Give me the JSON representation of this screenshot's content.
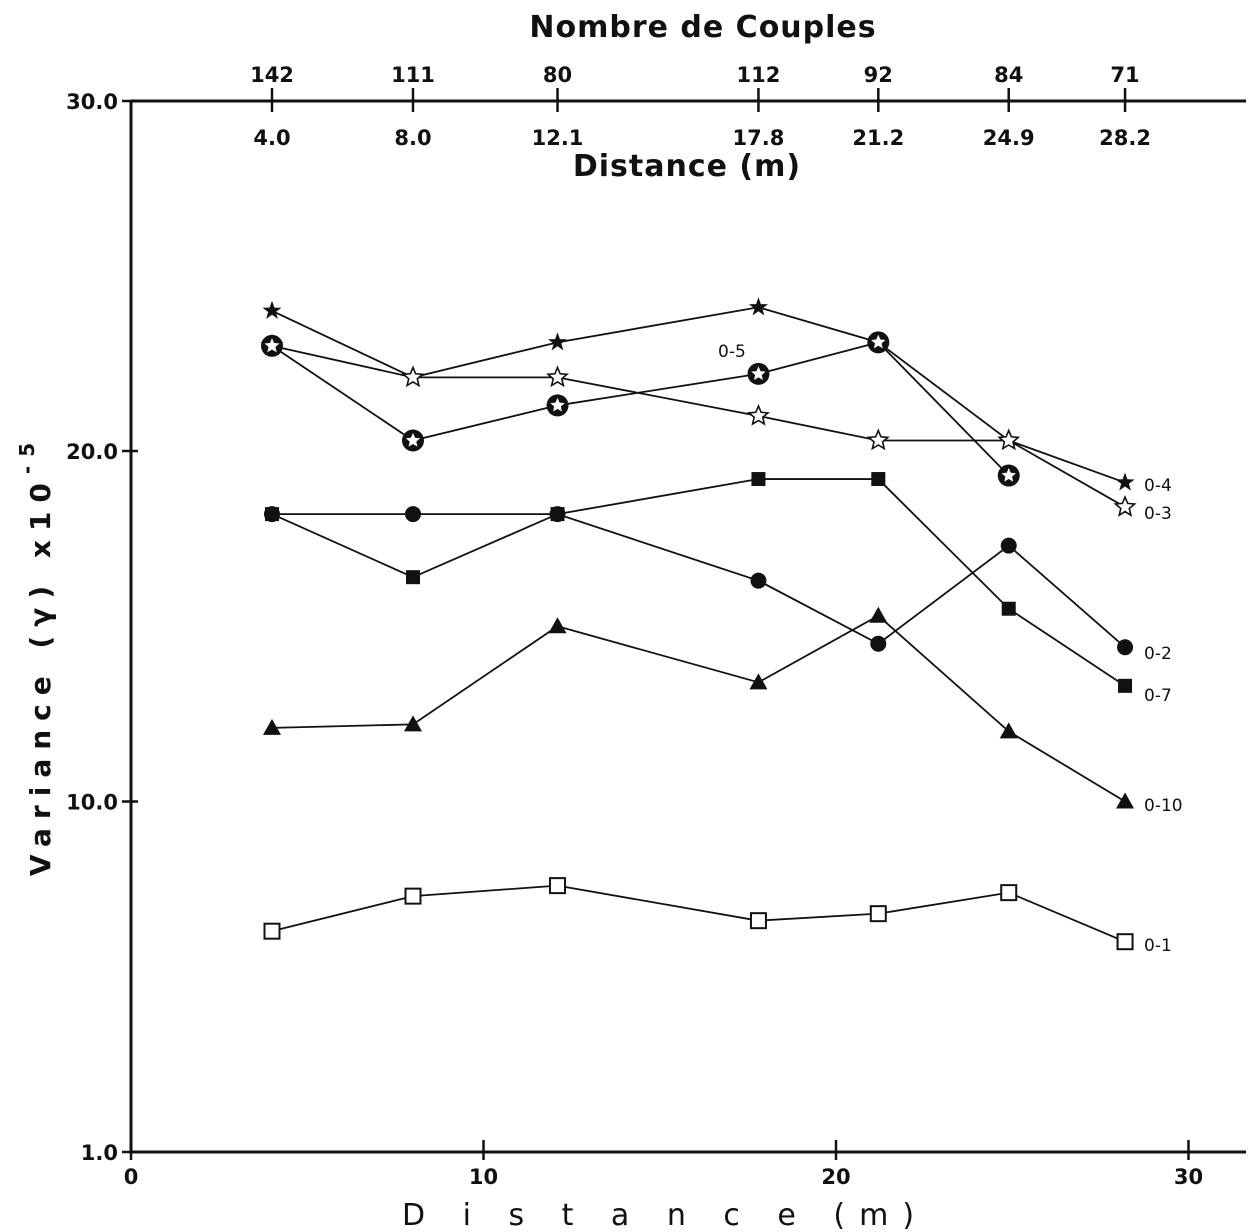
{
  "chart_data": {
    "type": "line",
    "top_axis_title": "Nombre de Couples",
    "top_axis_counts": [
      "142",
      "111",
      "80",
      "112",
      "92",
      "84",
      "71"
    ],
    "top_axis_distances": [
      "4.0",
      "8.0",
      "12.1",
      "17.8",
      "21.2",
      "24.9",
      "28.2"
    ],
    "top_axis_distance_label": "Distance (m)",
    "xlabel": "D i s t a n c e     (m)",
    "ylabel": "Variance (γ) x10",
    "ylabel_exponent": "-5",
    "y_ticks": [
      "30.0",
      "20.0",
      "10.0",
      "1.0"
    ],
    "x_ticks": [
      "0",
      "10",
      "20",
      "30"
    ],
    "xlim": [
      0,
      30
    ],
    "ylim": [
      1,
      30
    ],
    "x": [
      4.0,
      8.0,
      12.1,
      17.8,
      21.2,
      24.9,
      28.2
    ],
    "series": [
      {
        "name": "0-4",
        "marker": "star-filled",
        "values": [
          24.0,
          22.1,
          23.1,
          24.1,
          23.1,
          20.3,
          19.1
        ]
      },
      {
        "name": "0-5",
        "marker": "star-circle",
        "values": [
          23.0,
          20.3,
          21.3,
          22.2,
          23.1,
          19.3,
          null
        ]
      },
      {
        "name": "0-3",
        "marker": "star-open",
        "values": [
          23.0,
          22.1,
          22.1,
          21.0,
          20.3,
          20.3,
          18.4
        ]
      },
      {
        "name": "0-7",
        "marker": "square-filled",
        "values": [
          18.2,
          16.4,
          18.2,
          19.2,
          19.2,
          15.5,
          13.3
        ]
      },
      {
        "name": "0-2",
        "marker": "circle-filled",
        "values": [
          18.2,
          18.2,
          18.2,
          16.3,
          14.5,
          17.3,
          14.4
        ]
      },
      {
        "name": "0-10",
        "marker": "triangle-filled",
        "values": [
          12.1,
          12.2,
          15.0,
          13.4,
          15.3,
          12.0,
          10.0
        ]
      },
      {
        "name": "0-1",
        "marker": "square-open",
        "values": [
          6.3,
          7.3,
          7.6,
          6.6,
          6.8,
          7.4,
          6.0
        ]
      }
    ]
  }
}
